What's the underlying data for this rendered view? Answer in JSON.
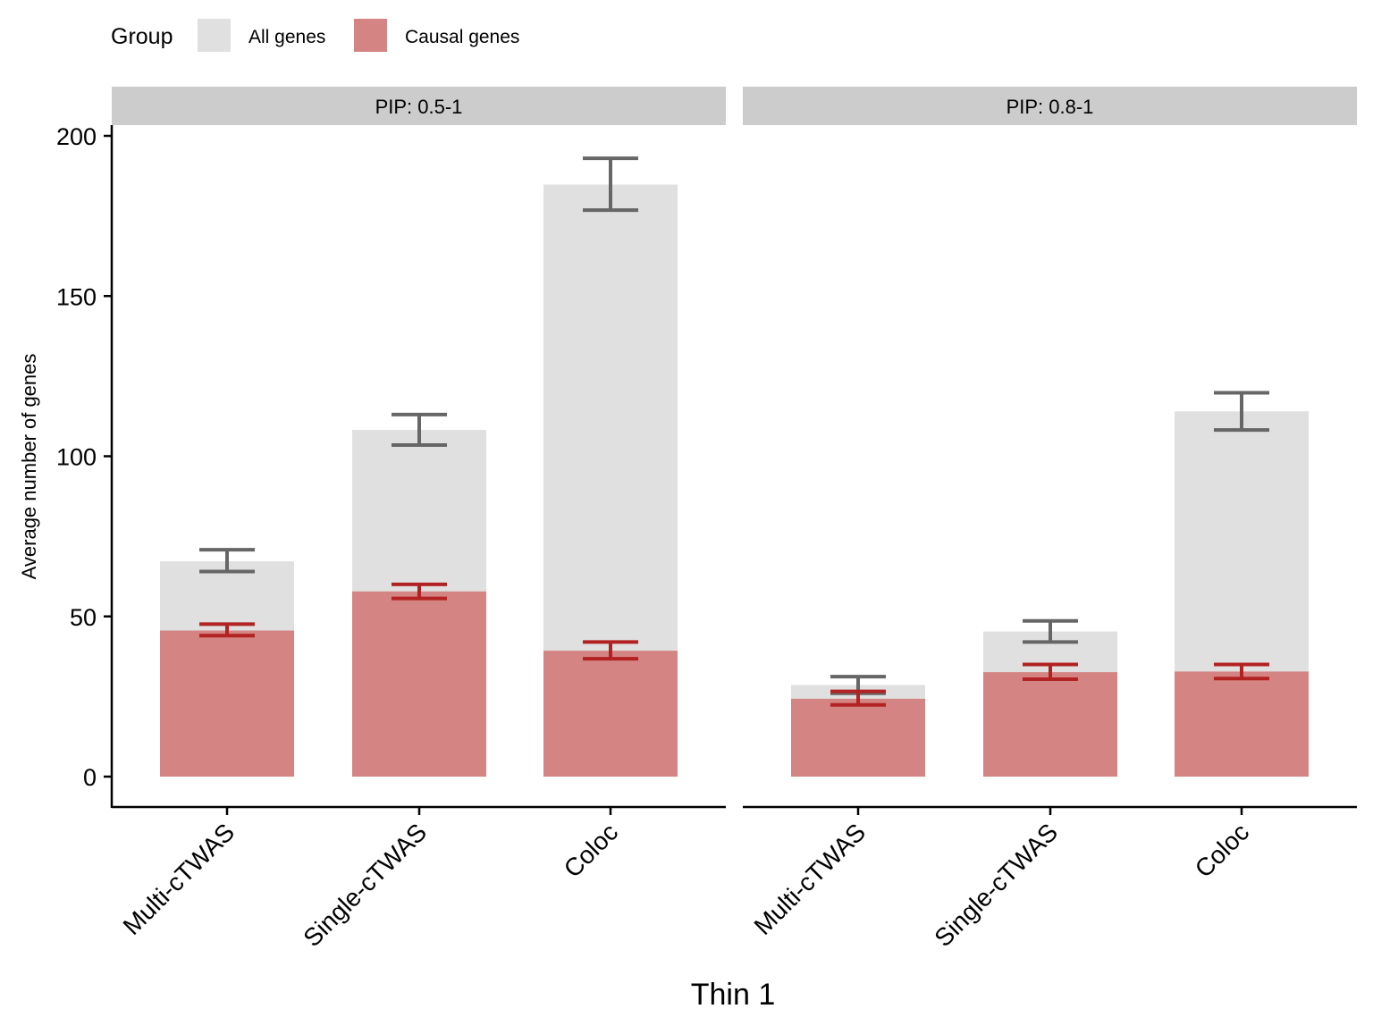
{
  "chart_data": {
    "type": "bar",
    "xlabel": "Thin 1",
    "ylabel": "Average number of genes",
    "ylim": [
      -10,
      203
    ],
    "yticks": [
      0,
      50,
      100,
      150,
      200
    ],
    "categories": [
      "Multi-cTWAS",
      "Single-cTWAS",
      "Coloc"
    ],
    "legend": {
      "title": "Group",
      "position": "top-left",
      "items": [
        {
          "label": "All genes",
          "color": "#E0E0E0"
        },
        {
          "label": "Causal genes",
          "color": "#D48483"
        }
      ]
    },
    "colors": {
      "all_bar": "#E0E0E0",
      "causal_bar": "#D48483",
      "all_error": "#666666",
      "causal_error": "#B22222",
      "strip": "#CCCCCC"
    },
    "panels": [
      {
        "label": "PIP: 0.5-1",
        "series": [
          {
            "name": "All genes",
            "values": [
              67.2,
              108.2,
              184.8
            ],
            "err_low": [
              64.0,
              103.5,
              176.8
            ],
            "err_high": [
              70.8,
              113.0,
              193.0
            ]
          },
          {
            "name": "Causal genes",
            "values": [
              45.6,
              57.8,
              39.3
            ],
            "err_low": [
              44.0,
              55.6,
              36.8
            ],
            "err_high": [
              47.6,
              60.0,
              42.0
            ]
          }
        ]
      },
      {
        "label": "PIP: 0.8-1",
        "series": [
          {
            "name": "All genes",
            "values": [
              28.6,
              45.3,
              114.0
            ],
            "err_low": [
              26.0,
              42.0,
              108.2
            ],
            "err_high": [
              31.2,
              48.6,
              119.8
            ]
          },
          {
            "name": "Causal genes",
            "values": [
              24.3,
              32.6,
              32.8
            ],
            "err_low": [
              22.4,
              30.4,
              30.6
            ],
            "err_high": [
              26.6,
              35.0,
              35.0
            ]
          }
        ]
      }
    ]
  }
}
